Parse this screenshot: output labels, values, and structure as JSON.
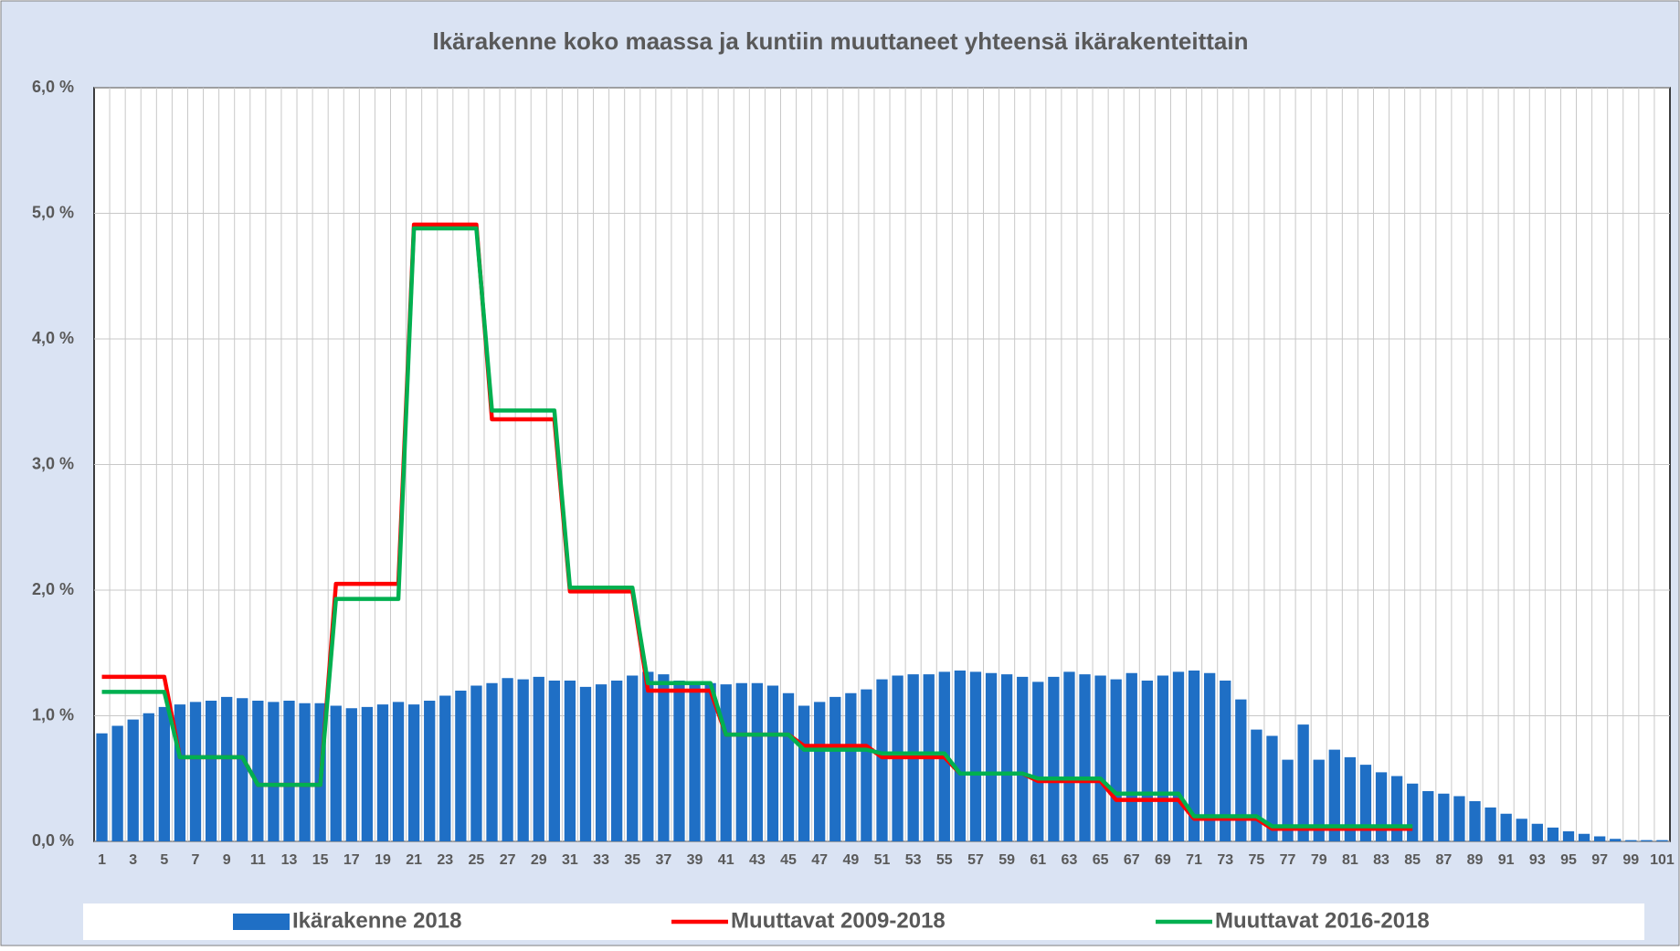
{
  "chart_data": {
    "type": "bar",
    "title": "Ikärakenne koko maassa ja kuntiin muuttaneet yhteensä ikärakenteittain",
    "categories": [
      1,
      null,
      3,
      null,
      5,
      null,
      7,
      null,
      9,
      null,
      11,
      null,
      13,
      null,
      15,
      null,
      17,
      null,
      19,
      null,
      21,
      null,
      23,
      null,
      25,
      null,
      27,
      null,
      29,
      null,
      31,
      null,
      33,
      null,
      35,
      null,
      37,
      null,
      39,
      null,
      41,
      null,
      43,
      null,
      45,
      null,
      47,
      null,
      49,
      null,
      51,
      null,
      53,
      null,
      55,
      null,
      57,
      null,
      59,
      null,
      61,
      null,
      63,
      null,
      65,
      null,
      67,
      null,
      69,
      null,
      71,
      null,
      73,
      null,
      75,
      null,
      77,
      null,
      79,
      null,
      81,
      null,
      83,
      null,
      85,
      null,
      87,
      null,
      89,
      null,
      91,
      null,
      93,
      null,
      95,
      null,
      97,
      null,
      99,
      null,
      101
    ],
    "series": [
      {
        "name": "Ikärakenne 2018",
        "type": "bar",
        "color": "#1f6fc5",
        "values": [
          0.86,
          0.92,
          0.97,
          1.02,
          1.07,
          1.09,
          1.11,
          1.12,
          1.15,
          1.14,
          1.12,
          1.11,
          1.12,
          1.1,
          1.1,
          1.08,
          1.06,
          1.07,
          1.09,
          1.11,
          1.09,
          1.12,
          1.16,
          1.2,
          1.24,
          1.26,
          1.3,
          1.29,
          1.31,
          1.28,
          1.28,
          1.23,
          1.25,
          1.28,
          1.32,
          1.35,
          1.33,
          1.28,
          1.27,
          1.26,
          1.25,
          1.26,
          1.26,
          1.24,
          1.18,
          1.08,
          1.11,
          1.15,
          1.18,
          1.21,
          1.29,
          1.32,
          1.33,
          1.33,
          1.35,
          1.36,
          1.35,
          1.34,
          1.33,
          1.31,
          1.27,
          1.31,
          1.35,
          1.33,
          1.32,
          1.29,
          1.34,
          1.28,
          1.32,
          1.35,
          1.36,
          1.34,
          1.28,
          1.13,
          0.89,
          0.84,
          0.65,
          0.93,
          0.65,
          0.73,
          0.67,
          0.61,
          0.55,
          0.52,
          0.46,
          0.4,
          0.38,
          0.36,
          0.32,
          0.27,
          0.22,
          0.18,
          0.14,
          0.11,
          0.08,
          0.06,
          0.04,
          0.02,
          0.01,
          0.01,
          0.01
        ]
      },
      {
        "name": "Muuttavat 2009-2018",
        "type": "line",
        "color": "#ff0000",
        "values": [
          1.31,
          1.31,
          1.31,
          1.31,
          1.31,
          0.67,
          0.67,
          0.67,
          0.67,
          0.67,
          0.45,
          0.45,
          0.45,
          0.45,
          0.45,
          2.05,
          2.05,
          2.05,
          2.05,
          2.05,
          4.91,
          4.91,
          4.91,
          4.91,
          4.91,
          3.36,
          3.36,
          3.36,
          3.36,
          3.36,
          1.99,
          1.99,
          1.99,
          1.99,
          1.99,
          1.2,
          1.2,
          1.2,
          1.2,
          1.2,
          0.85,
          0.85,
          0.85,
          0.85,
          0.85,
          0.76,
          0.76,
          0.76,
          0.76,
          0.76,
          0.67,
          0.67,
          0.67,
          0.67,
          0.67,
          0.54,
          0.54,
          0.54,
          0.54,
          0.54,
          0.48,
          0.48,
          0.48,
          0.48,
          0.48,
          0.33,
          0.33,
          0.33,
          0.33,
          0.33,
          0.18,
          0.18,
          0.18,
          0.18,
          0.18,
          0.1,
          0.1,
          0.1,
          0.1,
          0.1,
          0.1,
          0.1,
          0.1,
          0.1,
          0.1,
          null,
          null,
          null,
          null,
          null,
          null,
          null,
          null,
          null,
          null,
          null,
          null,
          null,
          null,
          null,
          null
        ]
      },
      {
        "name": "Muuttavat 2016-2018",
        "type": "line",
        "color": "#00b050",
        "values": [
          1.19,
          1.19,
          1.19,
          1.19,
          1.19,
          0.67,
          0.67,
          0.67,
          0.67,
          0.67,
          0.45,
          0.45,
          0.45,
          0.45,
          0.45,
          1.93,
          1.93,
          1.93,
          1.93,
          1.93,
          4.88,
          4.88,
          4.88,
          4.88,
          4.88,
          3.43,
          3.43,
          3.43,
          3.43,
          3.43,
          2.02,
          2.02,
          2.02,
          2.02,
          2.02,
          1.26,
          1.26,
          1.26,
          1.26,
          1.26,
          0.85,
          0.85,
          0.85,
          0.85,
          0.85,
          0.73,
          0.73,
          0.73,
          0.73,
          0.73,
          0.7,
          0.7,
          0.7,
          0.7,
          0.7,
          0.54,
          0.54,
          0.54,
          0.54,
          0.54,
          0.5,
          0.5,
          0.5,
          0.5,
          0.5,
          0.38,
          0.38,
          0.38,
          0.38,
          0.38,
          0.2,
          0.2,
          0.2,
          0.2,
          0.2,
          0.12,
          0.12,
          0.12,
          0.12,
          0.12,
          0.12,
          0.12,
          0.12,
          0.12,
          0.12,
          null,
          null,
          null,
          null,
          null,
          null,
          null,
          null,
          null,
          null,
          null,
          null,
          null,
          null,
          null,
          null
        ]
      }
    ],
    "ylim": [
      0,
      6
    ],
    "yticks": [
      {
        "value": 0,
        "label": "0,0 %"
      },
      {
        "value": 1,
        "label": "1,0 %"
      },
      {
        "value": 2,
        "label": "2,0 %"
      },
      {
        "value": 3,
        "label": "3,0 %"
      },
      {
        "value": 4,
        "label": "4,0 %"
      },
      {
        "value": 5,
        "label": "5,0 %"
      },
      {
        "value": 6,
        "label": "6,0 %"
      }
    ],
    "grid": true,
    "legend": "bottom"
  }
}
